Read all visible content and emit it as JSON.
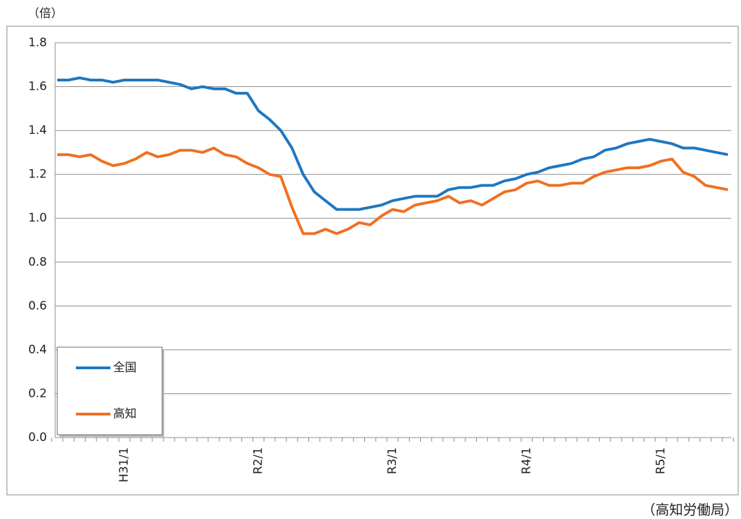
{
  "chart_data": {
    "type": "line",
    "unit_label": "（倍）",
    "source": "（高知労働局）",
    "categories": [
      null,
      null,
      null,
      null,
      null,
      null,
      "H31/1",
      null,
      null,
      null,
      null,
      null,
      null,
      null,
      null,
      null,
      null,
      null,
      "R2/1",
      null,
      null,
      null,
      null,
      null,
      null,
      null,
      null,
      null,
      null,
      null,
      "R3/1",
      null,
      null,
      null,
      null,
      null,
      null,
      null,
      null,
      null,
      null,
      null,
      "R4/1",
      null,
      null,
      null,
      null,
      null,
      null,
      null,
      null,
      null,
      null,
      null,
      "R5/1",
      null,
      null,
      null,
      null,
      null,
      null
    ],
    "series": [
      {
        "name": "全国",
        "color": "#1f77c0",
        "values": [
          1.63,
          1.63,
          1.64,
          1.63,
          1.63,
          1.62,
          1.63,
          1.63,
          1.63,
          1.63,
          1.62,
          1.61,
          1.59,
          1.6,
          1.59,
          1.59,
          1.57,
          1.57,
          1.49,
          1.45,
          1.4,
          1.32,
          1.2,
          1.12,
          1.08,
          1.04,
          1.04,
          1.04,
          1.05,
          1.06,
          1.08,
          1.09,
          1.1,
          1.1,
          1.1,
          1.13,
          1.14,
          1.14,
          1.15,
          1.15,
          1.17,
          1.18,
          1.2,
          1.21,
          1.23,
          1.24,
          1.25,
          1.27,
          1.28,
          1.31,
          1.32,
          1.34,
          1.35,
          1.36,
          1.35,
          1.34,
          1.32,
          1.32,
          1.31,
          1.3,
          1.29
        ]
      },
      {
        "name": "高知",
        "color": "#f07020",
        "values": [
          1.29,
          1.29,
          1.28,
          1.29,
          1.26,
          1.24,
          1.25,
          1.27,
          1.3,
          1.28,
          1.29,
          1.31,
          1.31,
          1.3,
          1.32,
          1.29,
          1.28,
          1.25,
          1.23,
          1.2,
          1.19,
          1.05,
          0.93,
          0.93,
          0.95,
          0.93,
          0.95,
          0.98,
          0.97,
          1.01,
          1.04,
          1.03,
          1.06,
          1.07,
          1.08,
          1.1,
          1.07,
          1.08,
          1.06,
          1.09,
          1.12,
          1.13,
          1.16,
          1.17,
          1.15,
          1.15,
          1.16,
          1.16,
          1.19,
          1.21,
          1.22,
          1.23,
          1.23,
          1.24,
          1.26,
          1.27,
          1.21,
          1.19,
          1.15,
          1.14,
          1.13
        ]
      }
    ],
    "ylim": [
      0,
      1.8
    ],
    "yticks": [
      {
        "value": 0,
        "label": "0.0"
      },
      {
        "value": 0.2,
        "label": "0.2"
      },
      {
        "value": 0.4,
        "label": "0.4"
      },
      {
        "value": 0.6,
        "label": "0.6"
      },
      {
        "value": 0.8,
        "label": "0.8"
      },
      {
        "value": 1.0,
        "label": "1.0"
      },
      {
        "value": 1.2,
        "label": "1.2"
      },
      {
        "value": 1.4,
        "label": "1.4"
      },
      {
        "value": 1.6,
        "label": "1.6"
      },
      {
        "value": 1.8,
        "label": "1.8"
      }
    ],
    "grid": true
  }
}
